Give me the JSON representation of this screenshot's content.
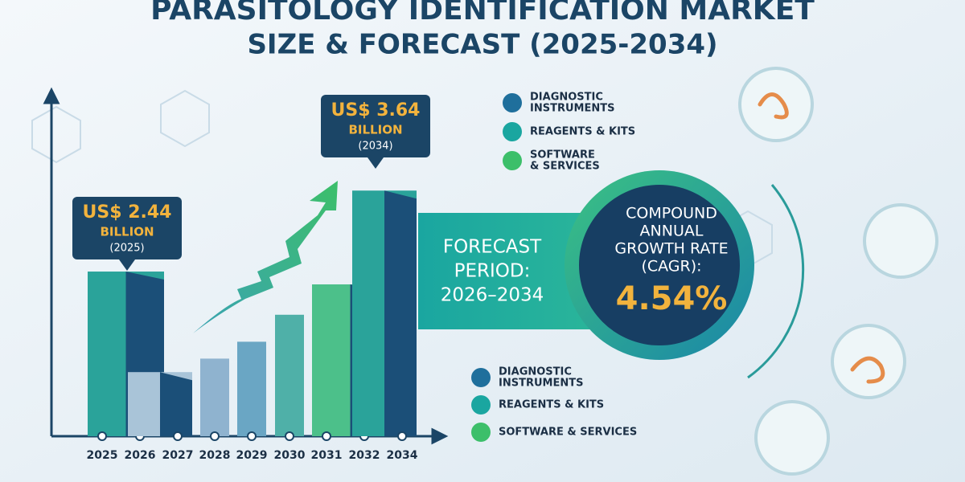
{
  "chart_data": {
    "type": "bar",
    "title": [
      "PARASITOLOGY IDENTIFICATION MARKET",
      "SIZE & FORECAST (2025-2034)"
    ],
    "categories": [
      "2025",
      "2026",
      "2027",
      "2028",
      "2029",
      "2030",
      "2031",
      "2032",
      "2034"
    ],
    "values": [
      2.44,
      null,
      0.95,
      1.15,
      1.4,
      1.8,
      2.25,
      null,
      3.64
    ],
    "colors": [
      "#2aa39a",
      "#1f6f8b",
      "#a9c4d8",
      "#8fb3cf",
      "#6aa6c4",
      "#4fb0a8",
      "#4cc08a",
      "#1f6f8b",
      "#2aa39a"
    ],
    "callouts": [
      {
        "amount": "US$ 2.44",
        "unit": "BILLION",
        "year": "(2025)"
      },
      {
        "amount": "US$ 3.64",
        "unit": "BILLION",
        "year": "(2034)"
      }
    ],
    "legend_top": [
      [
        "DIAGNOSTIC",
        "INSTRUMENTS"
      ],
      [
        "REAGENTS & KITS"
      ],
      [
        "SOFTWARE",
        "& SERVICES"
      ]
    ],
    "legend_bottom": [
      [
        "DIAGNOSTIC",
        "INSTRUMENTS"
      ],
      [
        "REAGENTS & KITS"
      ],
      [
        "SOFTWARE & SERVICES"
      ]
    ],
    "forecast": [
      "FORECAST",
      "PERIOD:",
      "2026–2034"
    ],
    "cagr_label": [
      "COMPOUND",
      "ANNUAL",
      "GROWTH RATE",
      "(CAGR):"
    ],
    "cagr_value": "4.54%"
  }
}
